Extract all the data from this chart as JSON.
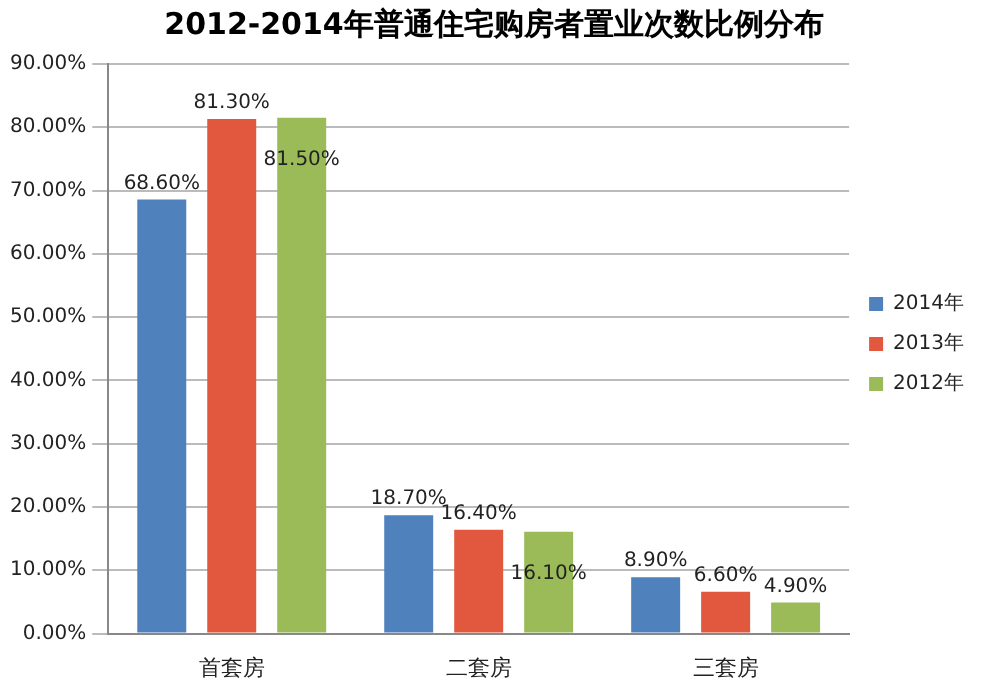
{
  "chart_data": {
    "type": "bar",
    "title": "2012-2014年普通住宅购房者置业次数比例分布",
    "categories": [
      "首套房",
      "二套房",
      "三套房"
    ],
    "series": [
      {
        "name": "2014年",
        "color": "#4f81bd",
        "values": [
          68.6,
          18.7,
          8.9
        ],
        "value_labels": [
          "68.60%",
          "18.70%",
          "8.90%"
        ]
      },
      {
        "name": "2013年",
        "color": "#e2583e",
        "values": [
          81.3,
          16.4,
          6.6
        ],
        "value_labels": [
          "81.30%",
          "16.40%",
          "6.60%"
        ]
      },
      {
        "name": "2012年",
        "color": "#9bbb59",
        "values": [
          81.5,
          16.1,
          4.9
        ],
        "value_labels": [
          "81.50%",
          "16.10%",
          "4.90%"
        ]
      }
    ],
    "ylim": [
      0,
      90
    ],
    "yticks": [
      {
        "value": 0,
        "label": "0.00%"
      },
      {
        "value": 10,
        "label": "10.00%"
      },
      {
        "value": 20,
        "label": "20.00%"
      },
      {
        "value": 30,
        "label": "30.00%"
      },
      {
        "value": 40,
        "label": "40.00%"
      },
      {
        "value": 50,
        "label": "50.00%"
      },
      {
        "value": 60,
        "label": "60.00%"
      },
      {
        "value": 70,
        "label": "70.00%"
      },
      {
        "value": 80,
        "label": "80.00%"
      },
      {
        "value": 90,
        "label": "90.00%"
      }
    ],
    "grid": "y",
    "legend": "right"
  }
}
